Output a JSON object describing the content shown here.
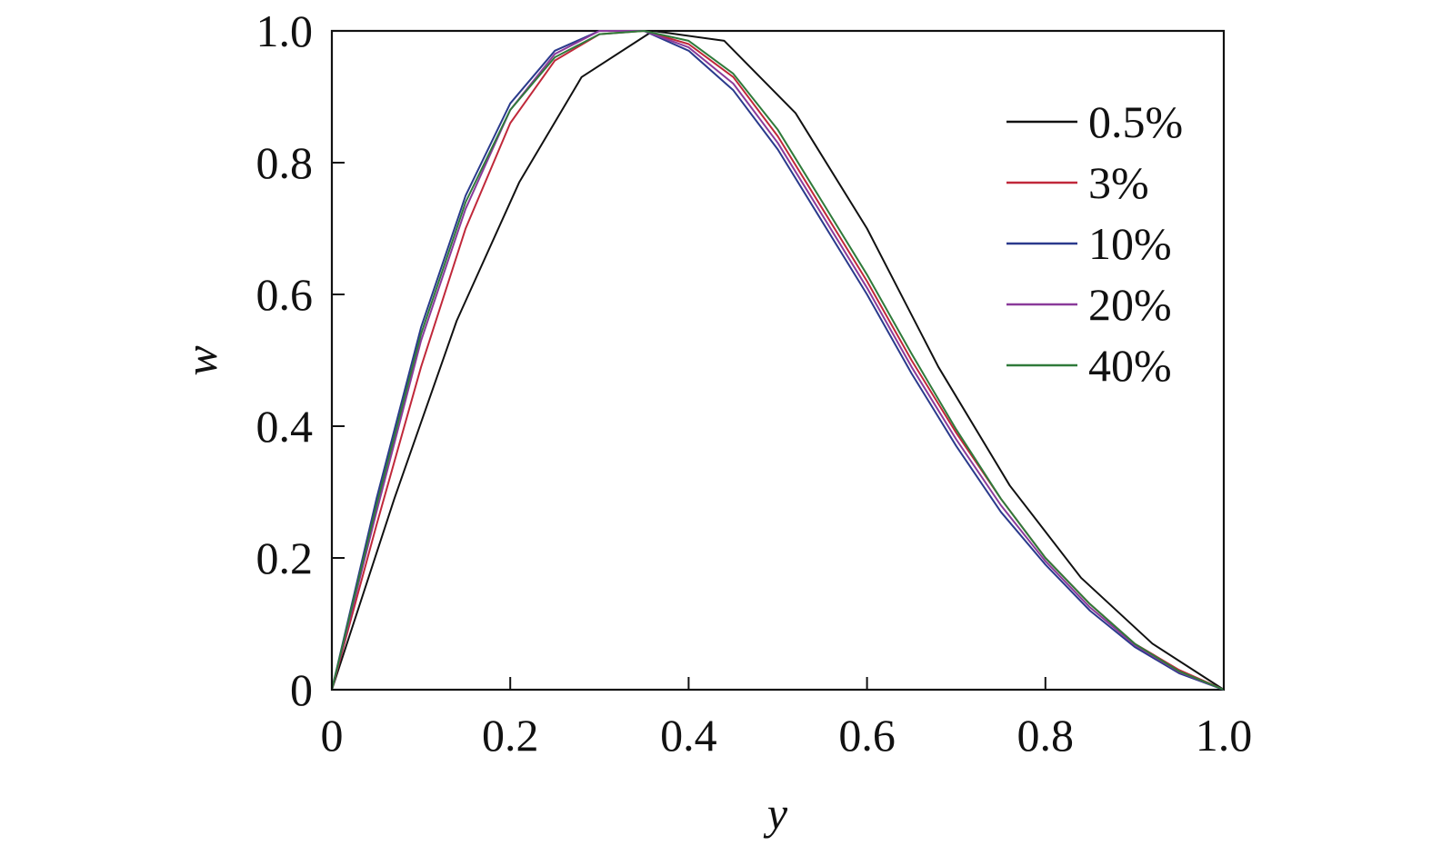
{
  "chart_data": {
    "type": "line",
    "title": "",
    "xlabel": "y",
    "ylabel": "w",
    "xlim": [
      0,
      1.0
    ],
    "ylim": [
      0,
      1.0
    ],
    "x_ticks": [
      "0",
      "0.2",
      "0.4",
      "0.6",
      "0.8",
      "1.0"
    ],
    "y_ticks": [
      "0",
      "0.2",
      "0.4",
      "0.6",
      "0.8",
      "1.0"
    ],
    "grid": false,
    "legend_position": "top-right",
    "series": [
      {
        "name": "0.5%",
        "color": "#111111",
        "x": [
          0,
          0.07,
          0.14,
          0.21,
          0.28,
          0.36,
          0.44,
          0.52,
          0.6,
          0.68,
          0.76,
          0.84,
          0.92,
          1.0
        ],
        "y": [
          0,
          0.29,
          0.56,
          0.77,
          0.93,
          1.0,
          0.985,
          0.875,
          0.7,
          0.49,
          0.31,
          0.17,
          0.07,
          0
        ]
      },
      {
        "name": "3%",
        "color": "#c0283a",
        "x": [
          0,
          0.05,
          0.1,
          0.15,
          0.2,
          0.25,
          0.3,
          0.35,
          0.4,
          0.45,
          0.5,
          0.55,
          0.6,
          0.65,
          0.7,
          0.75,
          0.8,
          0.85,
          0.9,
          0.95,
          1.0
        ],
        "y": [
          0,
          0.25,
          0.49,
          0.7,
          0.86,
          0.955,
          0.995,
          1.0,
          0.98,
          0.93,
          0.84,
          0.73,
          0.62,
          0.5,
          0.39,
          0.29,
          0.2,
          0.13,
          0.07,
          0.03,
          0
        ]
      },
      {
        "name": "10%",
        "color": "#2a3a8c",
        "x": [
          0,
          0.05,
          0.1,
          0.15,
          0.2,
          0.25,
          0.3,
          0.35,
          0.4,
          0.45,
          0.5,
          0.55,
          0.6,
          0.65,
          0.7,
          0.75,
          0.8,
          0.85,
          0.9,
          0.95,
          1.0
        ],
        "y": [
          0,
          0.29,
          0.55,
          0.75,
          0.89,
          0.97,
          1.0,
          1.0,
          0.97,
          0.91,
          0.82,
          0.71,
          0.6,
          0.48,
          0.37,
          0.27,
          0.19,
          0.12,
          0.065,
          0.025,
          0
        ]
      },
      {
        "name": "20%",
        "color": "#8a3a9a",
        "x": [
          0,
          0.05,
          0.1,
          0.15,
          0.2,
          0.25,
          0.3,
          0.35,
          0.4,
          0.45,
          0.5,
          0.55,
          0.6,
          0.65,
          0.7,
          0.75,
          0.8,
          0.85,
          0.9,
          0.95,
          1.0
        ],
        "y": [
          0,
          0.27,
          0.53,
          0.73,
          0.88,
          0.965,
          1.0,
          1.0,
          0.975,
          0.92,
          0.83,
          0.72,
          0.61,
          0.49,
          0.38,
          0.28,
          0.195,
          0.125,
          0.068,
          0.027,
          0
        ]
      },
      {
        "name": "40%",
        "color": "#2f7a3a",
        "x": [
          0,
          0.05,
          0.1,
          0.15,
          0.2,
          0.25,
          0.3,
          0.35,
          0.4,
          0.45,
          0.5,
          0.55,
          0.6,
          0.65,
          0.7,
          0.75,
          0.8,
          0.85,
          0.9,
          0.95,
          1.0
        ],
        "y": [
          0,
          0.28,
          0.54,
          0.74,
          0.88,
          0.96,
          0.995,
          1.0,
          0.985,
          0.935,
          0.85,
          0.74,
          0.63,
          0.51,
          0.395,
          0.29,
          0.2,
          0.13,
          0.07,
          0.028,
          0
        ]
      }
    ]
  }
}
